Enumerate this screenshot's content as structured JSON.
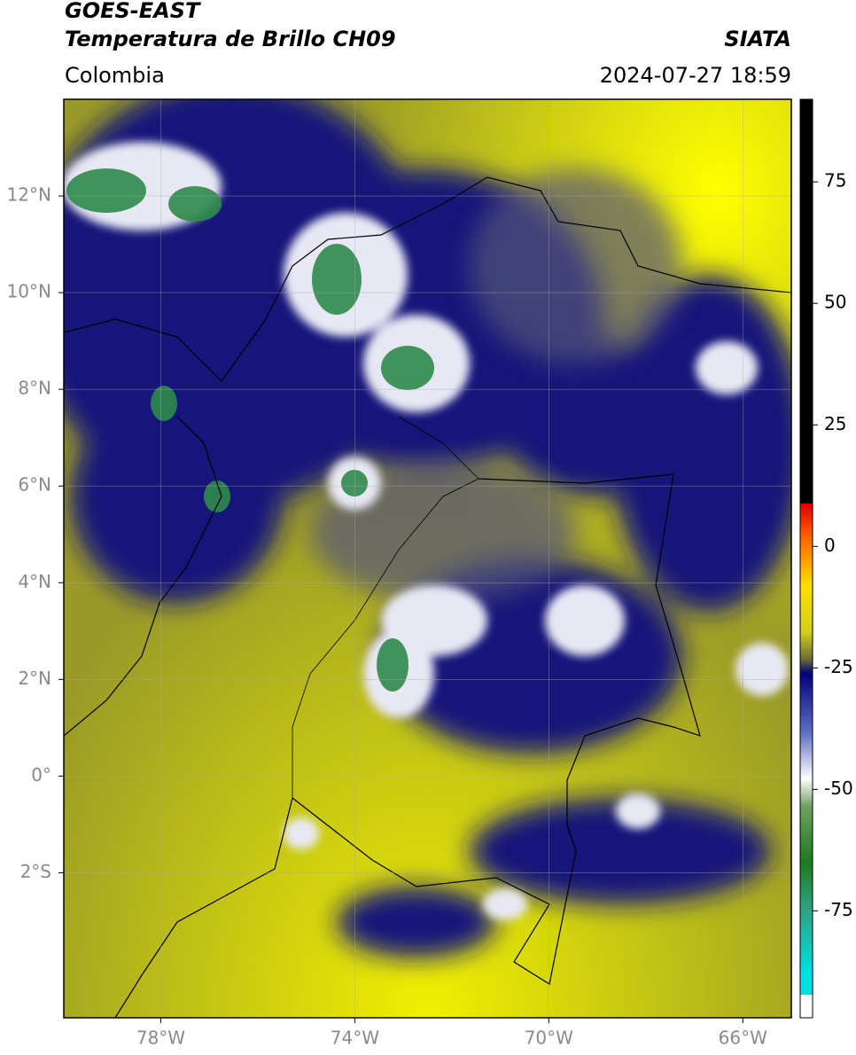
{
  "header": {
    "satellite": "GOES-EAST",
    "product": "Temperatura de Brillo CH09",
    "source": "SIATA",
    "region": "Colombia",
    "timestamp": "2024-07-27 18:59"
  },
  "map": {
    "xlim": [
      -80,
      -65
    ],
    "ylim": [
      -5,
      14
    ],
    "xticks": [
      {
        "value": -78,
        "label": "78°W"
      },
      {
        "value": -74,
        "label": "74°W"
      },
      {
        "value": -70,
        "label": "70°W"
      },
      {
        "value": -66,
        "label": "66°W"
      }
    ],
    "yticks": [
      {
        "value": 12,
        "label": "12°N"
      },
      {
        "value": 10,
        "label": "10°N"
      },
      {
        "value": 8,
        "label": "8°N"
      },
      {
        "value": 6,
        "label": "6°N"
      },
      {
        "value": 4,
        "label": "4°N"
      },
      {
        "value": 2,
        "label": "2°N"
      },
      {
        "value": 0,
        "label": "0°"
      },
      {
        "value": -2,
        "label": "2°S"
      }
    ]
  },
  "colorbar": {
    "lim": [
      -97,
      92
    ],
    "ticks": [
      75,
      50,
      25,
      0,
      -25,
      -50,
      -75
    ]
  }
}
